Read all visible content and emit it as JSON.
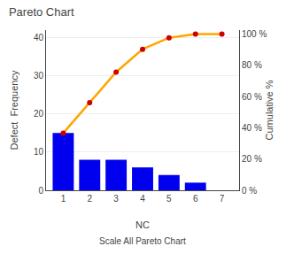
{
  "chart_data": {
    "type": "pareto",
    "title": "Pareto Chart",
    "x_label": "NC",
    "y_label": "Defect  Frequency",
    "y2_label": "Cumulative %",
    "annotations": [
      "Scale All Pareto Chart"
    ],
    "x": [
      1,
      2,
      3,
      4,
      5,
      6,
      7
    ],
    "xlim": [
      0.35,
      7.65
    ],
    "xticks": [
      1,
      2,
      3,
      4,
      5,
      6,
      7
    ],
    "ylim": [
      0,
      42
    ],
    "yticks": [
      0,
      10,
      20,
      30,
      40
    ],
    "y2lim": [
      0,
      102.5
    ],
    "y2ticks": [
      {
        "value": 0,
        "label": "0 %"
      },
      {
        "value": 20,
        "label": "20 %"
      },
      {
        "value": 40,
        "label": "40 %"
      },
      {
        "value": 60,
        "label": "60 %"
      },
      {
        "value": 80,
        "label": "80 %"
      },
      {
        "value": 100,
        "label": "100 %"
      }
    ],
    "grid": true,
    "series": [
      {
        "type": "bar",
        "color": "#0000ee",
        "values": [
          15,
          8,
          8,
          6,
          4,
          2,
          0
        ]
      },
      {
        "type": "line",
        "axis": "y2",
        "color": "#FFA500",
        "values": [
          36.58536585365854,
          56.09756097560975,
          75.60975609756098,
          90.2439024390244,
          97.5609756097561,
          100,
          100
        ]
      },
      {
        "type": "scatter",
        "axis": "y2",
        "color": "#cc0000",
        "marker": "circle",
        "values": [
          36.58536585365854,
          56.09756097560975,
          75.60975609756098,
          90.2439024390244,
          97.5609756097561,
          100,
          100
        ]
      }
    ]
  }
}
